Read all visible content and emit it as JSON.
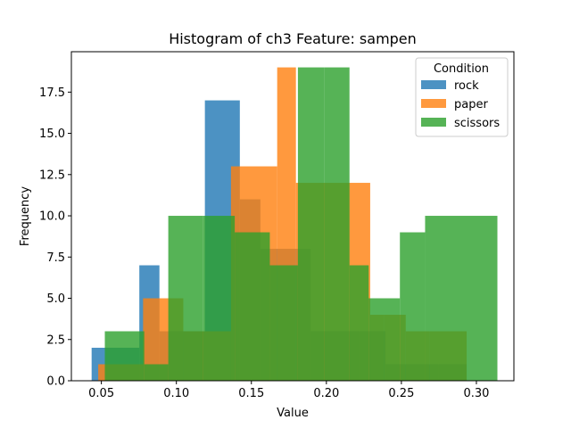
{
  "chart_data": {
    "type": "histogram",
    "title": "Histogram of ch3 Feature: sampen",
    "xlabel": "Value",
    "ylabel": "Frequency",
    "xlim": [
      0.03,
      0.325
    ],
    "ylim": [
      0,
      19.95
    ],
    "xticks": [
      "0.05",
      "0.10",
      "0.15",
      "0.20",
      "0.25",
      "0.30"
    ],
    "xtick_values": [
      0.05,
      0.1,
      0.15,
      0.2,
      0.25,
      0.3
    ],
    "yticks": [
      "0.0",
      "2.5",
      "5.0",
      "7.5",
      "10.0",
      "12.5",
      "15.0",
      "17.5"
    ],
    "ytick_values": [
      0,
      2.5,
      5,
      7.5,
      10,
      12.5,
      15,
      17.5
    ],
    "grid": false,
    "legend": {
      "title": "Condition",
      "placement": "upper right"
    },
    "series": [
      {
        "name": "rock",
        "color": "#1f77b4",
        "alpha": 0.8,
        "bin_edges": [
          0.0435,
          0.0753,
          0.0887,
          0.119,
          0.1423,
          0.156,
          0.1798,
          0.1895,
          0.2226,
          0.2394,
          0.2749,
          0.2935
        ],
        "counts": [
          2,
          7,
          3,
          17,
          11,
          8,
          8,
          3,
          3,
          1,
          1
        ]
      },
      {
        "name": "paper",
        "color": "#ff7f0e",
        "alpha": 0.8,
        "bin_edges": [
          0.0479,
          0.0778,
          0.1046,
          0.1364,
          0.1672,
          0.1797,
          0.2292,
          0.2386,
          0.2529,
          0.2686,
          0.2935
        ],
        "counts": [
          1,
          5,
          3,
          13,
          19,
          12,
          4,
          4,
          3,
          3
        ]
      },
      {
        "name": "scissors",
        "color": "#2ca02c",
        "alpha": 0.8,
        "bin_edges": [
          0.0523,
          0.0786,
          0.0946,
          0.1179,
          0.1389,
          0.1623,
          0.181,
          0.1985,
          0.2154,
          0.2282,
          0.249,
          0.2658,
          0.2905,
          0.314
        ],
        "counts": [
          3,
          1,
          10,
          10,
          9,
          7,
          19,
          19,
          7,
          5,
          9,
          10,
          10
        ]
      }
    ]
  }
}
